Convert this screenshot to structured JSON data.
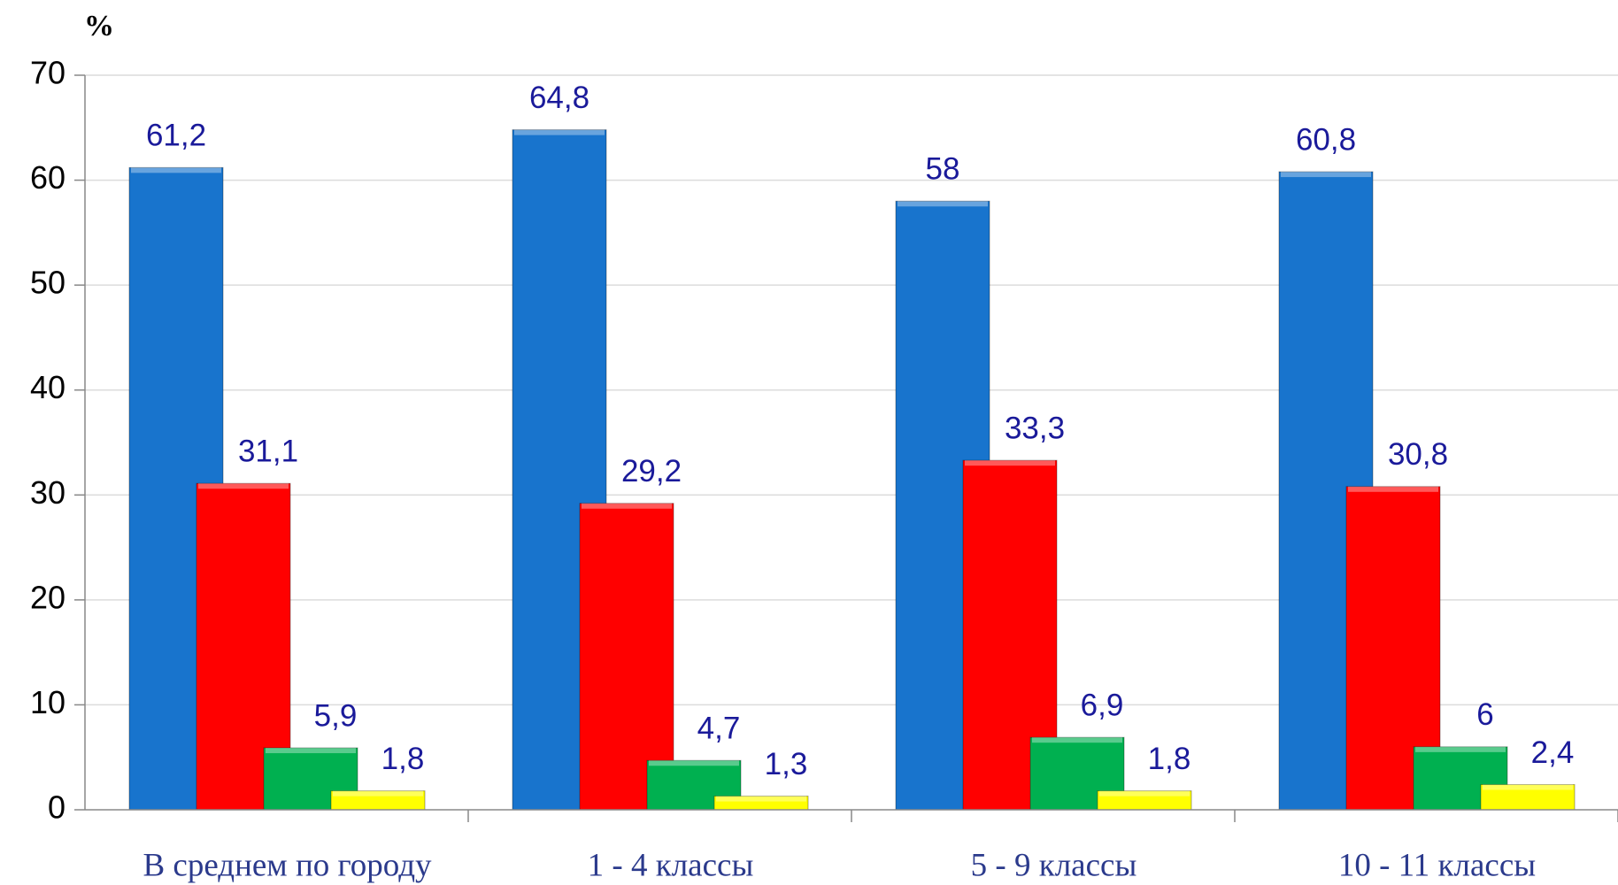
{
  "chart_data": {
    "type": "bar",
    "y_axis_label": "%",
    "categories": [
      "В среднем по городу",
      "1 - 4 классы",
      "5 - 9 классы",
      "10 - 11 классы"
    ],
    "series": [
      {
        "color": "#1874cd",
        "values": [
          61.2,
          64.8,
          58,
          60.8
        ],
        "value_labels": [
          "61,2",
          "64,8",
          "58",
          "60,8"
        ]
      },
      {
        "color": "#ff0000",
        "values": [
          31.1,
          29.2,
          33.3,
          30.8
        ],
        "value_labels": [
          "31,1",
          "29,2",
          "33,3",
          "30,8"
        ]
      },
      {
        "color": "#00b050",
        "values": [
          5.9,
          4.7,
          6.9,
          6
        ],
        "value_labels": [
          "5,9",
          "4,7",
          "6,9",
          "6"
        ]
      },
      {
        "color": "#ffff00",
        "values": [
          1.8,
          1.3,
          1.8,
          2.4
        ],
        "value_labels": [
          "1,8",
          "1,3",
          "1,8",
          "2,4"
        ]
      }
    ],
    "ylim": [
      0,
      70
    ],
    "yticks": [
      0,
      10,
      20,
      30,
      40,
      50,
      60,
      70
    ],
    "grid": true
  }
}
